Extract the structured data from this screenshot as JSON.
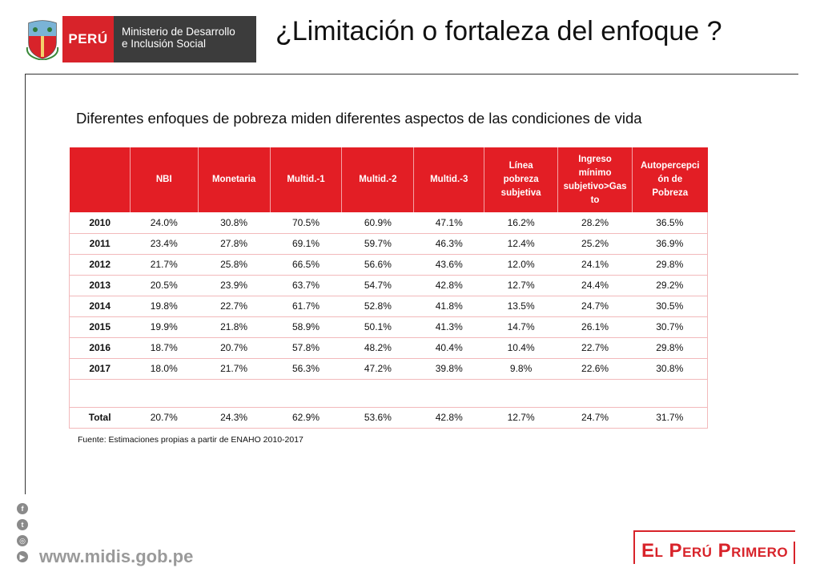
{
  "header": {
    "logo_country": "PERÚ",
    "logo_ministry_line1": "Ministerio de Desarrollo",
    "logo_ministry_line2": "e Inclusión Social",
    "title": "¿Limitación o fortaleza del enfoque ?"
  },
  "subtitle": "Diferentes enfoques de pobreza miden diferentes aspectos de las condiciones de vida",
  "table": {
    "headers": [
      "",
      "NBI",
      "Monetaria",
      "Multid.-1",
      "Multid.-2",
      "Multid.-3",
      "Línea pobreza subjetiva",
      "Ingreso mínimo subjetivo>Gasto",
      "Autopercepción de Pobreza"
    ],
    "rows": [
      [
        "2010",
        "24.0%",
        "30.8%",
        "70.5%",
        "60.9%",
        "47.1%",
        "16.2%",
        "28.2%",
        "36.5%"
      ],
      [
        "2011",
        "23.4%",
        "27.8%",
        "69.1%",
        "59.7%",
        "46.3%",
        "12.4%",
        "25.2%",
        "36.9%"
      ],
      [
        "2012",
        "21.7%",
        "25.8%",
        "66.5%",
        "56.6%",
        "43.6%",
        "12.0%",
        "24.1%",
        "29.8%"
      ],
      [
        "2013",
        "20.5%",
        "23.9%",
        "63.7%",
        "54.7%",
        "42.8%",
        "12.7%",
        "24.4%",
        "29.2%"
      ],
      [
        "2014",
        "19.8%",
        "22.7%",
        "61.7%",
        "52.8%",
        "41.8%",
        "13.5%",
        "24.7%",
        "30.5%"
      ],
      [
        "2015",
        "19.9%",
        "21.8%",
        "58.9%",
        "50.1%",
        "41.3%",
        "14.7%",
        "26.1%",
        "30.7%"
      ],
      [
        "2016",
        "18.7%",
        "20.7%",
        "57.8%",
        "48.2%",
        "40.4%",
        "10.4%",
        "22.7%",
        "29.8%"
      ],
      [
        "2017",
        "18.0%",
        "21.7%",
        "56.3%",
        "47.2%",
        "39.8%",
        "9.8%",
        "22.6%",
        "30.8%"
      ]
    ],
    "total": [
      "Total",
      "20.7%",
      "24.3%",
      "62.9%",
      "53.6%",
      "42.8%",
      "12.7%",
      "24.7%",
      "31.7%"
    ]
  },
  "source": "Fuente: Estimaciones propias a partir de ENAHO 2010-2017",
  "footer": {
    "social_icons": [
      "facebook-icon",
      "twitter-icon",
      "instagram-icon",
      "youtube-icon"
    ],
    "website": "www.midis.gob.pe",
    "brand": "El Perú Primero"
  },
  "colors": {
    "accent_red": "#e31e25",
    "ministry_gray": "#3c3c3c",
    "footer_gray": "#9a9a9a"
  }
}
